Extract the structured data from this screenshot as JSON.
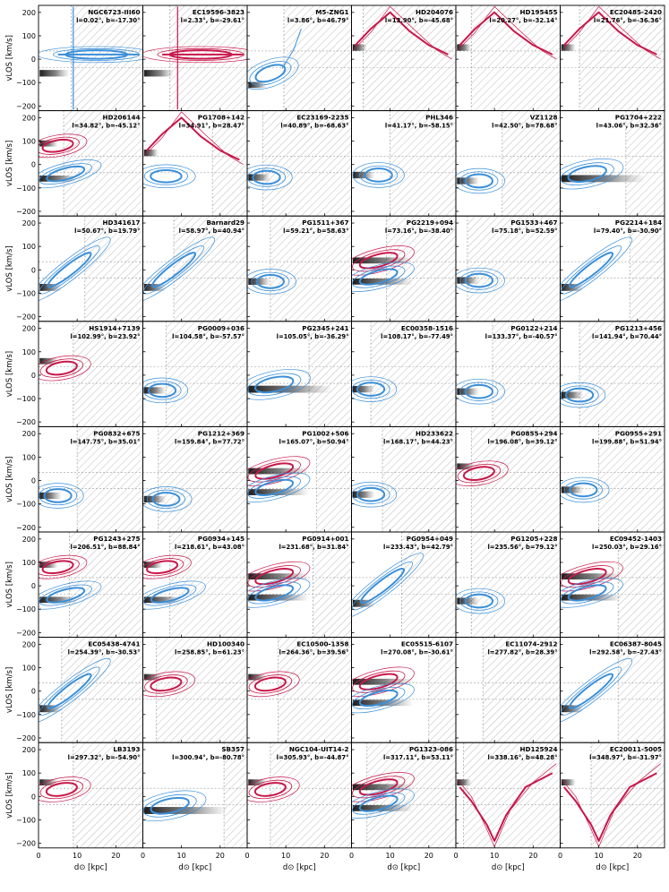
{
  "chart_data": {
    "type": "grid",
    "grid": {
      "rows": 8,
      "cols": 6
    },
    "xlabel": "d⊙ [kpc]",
    "ylabel": "vLOS [km/s]",
    "xlim": [
      0,
      27
    ],
    "ylim": [
      -220,
      230
    ],
    "xticks": [
      0,
      10,
      20
    ],
    "yticks": [
      -200,
      -100,
      0,
      100,
      200
    ],
    "colors": {
      "blue": "#3a8fd9",
      "red": "#c8174a",
      "hatch": "#bdbdbd",
      "guide": "#9a9a9a"
    },
    "panels": [
      {
        "name": "NGC6723-III60",
        "coords": "l=0.02°, b=-17.30°",
        "hatch": 8.5,
        "type": "ridge",
        "color": "blue",
        "y0": 20,
        "extra": "spikeUp"
      },
      {
        "name": "EC19596-3823",
        "coords": "l=2.33°, b=-29.61°",
        "hatch": 7.0,
        "type": "ridge",
        "color": "red",
        "y0": 20,
        "extra": "spikeBoth"
      },
      {
        "name": "M5-ZNG1",
        "coords": "l=3.86°, b=46.79°",
        "hatch": 9.5,
        "type": "rise",
        "color": "blue"
      },
      {
        "name": "HD204076",
        "coords": "l=13.90°, b=-45.68°",
        "hatch": 3.0,
        "type": "arch",
        "color": "red"
      },
      {
        "name": "HD195455",
        "coords": "l=20.27°, b=-32.14°",
        "hatch": 4.0,
        "type": "arch",
        "color": "red"
      },
      {
        "name": "EC20485-2420",
        "coords": "l=21.76°, b=-36.36°",
        "hatch": 5.0,
        "type": "arch",
        "color": "red"
      },
      {
        "name": "HD206144",
        "coords": "l=34.82°, b=-45.12°",
        "hatch": 6.5,
        "type": "twoblob",
        "color": "red"
      },
      {
        "name": "PG1708+142",
        "coords": "l=34.91°, b=28.47°",
        "hatch": 18.0,
        "type": "arch2",
        "color": "red"
      },
      {
        "name": "EC23169-2235",
        "coords": "l=40.89°, b=-68.63°",
        "hatch": 4.0,
        "type": "blob",
        "color": "blue",
        "cx": 5,
        "cy": -55
      },
      {
        "name": "PHL346",
        "coords": "l=41.17°, b=-58.15°",
        "hatch": 10.0,
        "type": "blob",
        "color": "blue",
        "cx": 7,
        "cy": -45
      },
      {
        "name": "VZ1128",
        "coords": "l=42.50°, b=78.68°",
        "hatch": 12.0,
        "type": "blob",
        "color": "blue",
        "cx": 6,
        "cy": -70
      },
      {
        "name": "PG1704+222",
        "coords": "l=43.06°, b=32.36°",
        "hatch": 17.0,
        "type": "wide",
        "color": "blue"
      },
      {
        "name": "HD341617",
        "coords": "l=50.67°, b=19.79°",
        "hatch": 12.0,
        "type": "diag",
        "color": "blue"
      },
      {
        "name": "Barnard29",
        "coords": "l=58.97°, b=40.94°",
        "hatch": 8.0,
        "type": "diag",
        "color": "blue"
      },
      {
        "name": "PG1511+367",
        "coords": "l=59.21°, b=58.63°",
        "hatch": 6.0,
        "type": "blob",
        "color": "blue",
        "cx": 6,
        "cy": -50
      },
      {
        "name": "PG2219+094",
        "coords": "l=73.16°, b=-38.40°",
        "hatch": 9.0,
        "type": "mix",
        "color": "red"
      },
      {
        "name": "PG1533+467",
        "coords": "l=75.18°, b=52.59°",
        "hatch": 3.0,
        "type": "blob",
        "color": "blue",
        "cx": 6,
        "cy": -45
      },
      {
        "name": "PG2214+184",
        "coords": "l=79.40°, b=-30.90°",
        "hatch": 18.0,
        "type": "diag",
        "color": "blue"
      },
      {
        "name": "HS1914+7139",
        "coords": "l=102.99°, b=23.92°",
        "hatch": 9.0,
        "type": "redblob",
        "color": "red"
      },
      {
        "name": "PG0009+036",
        "coords": "l=104.58°, b=-57.57°",
        "hatch": 6.0,
        "type": "blob",
        "color": "blue",
        "cx": 5,
        "cy": -65
      },
      {
        "name": "PG2345+241",
        "coords": "l=105.05°, b=-36.29°",
        "hatch": 16.0,
        "type": "wide",
        "color": "blue"
      },
      {
        "name": "EC00358-1516",
        "coords": "l=108.17°, b=-77.49°",
        "hatch": 5.0,
        "type": "blob",
        "color": "blue",
        "cx": 5,
        "cy": -60
      },
      {
        "name": "PG0122+214",
        "coords": "l=133.37°, b=-40.57°",
        "hatch": 9.5,
        "type": "blob",
        "color": "blue",
        "cx": 6,
        "cy": -70
      },
      {
        "name": "PG1213+456",
        "coords": "l=141.94°, b=70.44°",
        "hatch": 5.0,
        "type": "blob",
        "color": "blue",
        "cx": 5,
        "cy": -85
      },
      {
        "name": "PG0832+675",
        "coords": "l=147.75°, b=35.01°",
        "hatch": 10.0,
        "type": "blob",
        "color": "blue",
        "cx": 5,
        "cy": -65
      },
      {
        "name": "PG1212+369",
        "coords": "l=159.84°, b=77.72°",
        "hatch": 4.0,
        "type": "blob",
        "color": "blue",
        "cx": 6,
        "cy": -80
      },
      {
        "name": "PG1002+506",
        "coords": "l=165.07°, b=50.94°",
        "hatch": 18.0,
        "type": "mix",
        "color": "red"
      },
      {
        "name": "HD233622",
        "coords": "l=168.17°, b=44.23°",
        "hatch": 8.0,
        "type": "blob",
        "color": "blue",
        "cx": 5,
        "cy": -60
      },
      {
        "name": "PG0855+294",
        "coords": "l=196.08°, b=39.12°",
        "hatch": 4.0,
        "type": "redblob",
        "color": "red"
      },
      {
        "name": "PG0955+291",
        "coords": "l=199.88°, b=51.94°",
        "hatch": 10.0,
        "type": "blob",
        "color": "blue",
        "cx": 6,
        "cy": -40
      },
      {
        "name": "PG1243+275",
        "coords": "l=206.51°, b=88.84°",
        "hatch": 8.0,
        "type": "twoblob",
        "color": "red"
      },
      {
        "name": "PG0934+145",
        "coords": "l=218.61°, b=43.08°",
        "hatch": 7.0,
        "type": "twoblob",
        "color": "red"
      },
      {
        "name": "PG0914+001",
        "coords": "l=231.68°, b=31.84°",
        "hatch": 17.0,
        "type": "mix",
        "color": "red"
      },
      {
        "name": "PG0954+049",
        "coords": "l=233.43°, b=42.79°",
        "hatch": 13.0,
        "type": "diag",
        "color": "blue"
      },
      {
        "name": "PG1205+228",
        "coords": "l=235.56°, b=79.12°",
        "hatch": 4.0,
        "type": "blob",
        "color": "blue",
        "cx": 6,
        "cy": -65
      },
      {
        "name": "EC09452-1403",
        "coords": "l=250.03°, b=29.16°",
        "hatch": 15.0,
        "type": "mix",
        "color": "red"
      },
      {
        "name": "EC05438-4741",
        "coords": "l=254.39°, b=-30.53°",
        "hatch": 6.0,
        "type": "diag",
        "color": "blue"
      },
      {
        "name": "HD100340",
        "coords": "l=258.85°, b=61.23°",
        "hatch": 3.5,
        "type": "redblob",
        "color": "red"
      },
      {
        "name": "EC10500-1358",
        "coords": "l=264.36°, b=39.56°",
        "hatch": 8.0,
        "type": "redblob",
        "color": "red"
      },
      {
        "name": "EC05515-6107",
        "coords": "l=270.08°, b=-30.61°",
        "hatch": 20.0,
        "type": "mix",
        "color": "red"
      },
      {
        "name": "EC11074-2912",
        "coords": "l=277.82°, b=28.39°",
        "hatch": 7.0,
        "type": "empty",
        "color": "blue"
      },
      {
        "name": "EC06387-8045",
        "coords": "l=292.58°, b=-27.43°",
        "hatch": 15.0,
        "type": "diag",
        "color": "blue"
      },
      {
        "name": "LB3193",
        "coords": "l=297.32°, b=-54.90°",
        "hatch": 9.0,
        "type": "redblob",
        "color": "red"
      },
      {
        "name": "SB357",
        "coords": "l=300.94°, b=-80.78°",
        "hatch": 21.0,
        "type": "wide",
        "color": "blue"
      },
      {
        "name": "NGC104-UIT14-2",
        "coords": "l=305.93°, b=-44.87°",
        "hatch": 6.0,
        "type": "redblob",
        "color": "red"
      },
      {
        "name": "PG1323-086",
        "coords": "l=317.11°, b=53.11°",
        "hatch": 4.0,
        "type": "mix",
        "color": "red"
      },
      {
        "name": "HD125924",
        "coords": "l=338.16°, b=48.28°",
        "hatch": 2.0,
        "type": "valley",
        "color": "red"
      },
      {
        "name": "EC20011-5005",
        "coords": "l=348.97°, b=-31.97°",
        "hatch": 8.0,
        "type": "valley",
        "color": "red"
      }
    ]
  }
}
